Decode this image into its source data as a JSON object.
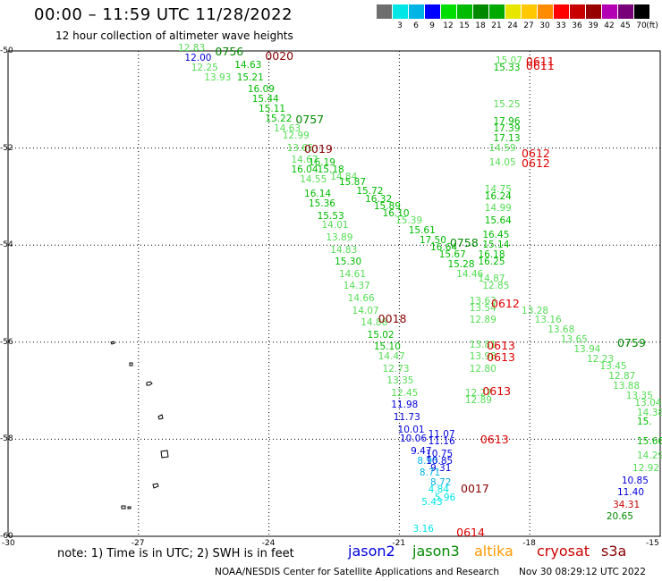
{
  "header": {
    "title": "00:00 – 11:59 UTC 11/28/2022",
    "subtitle": "12 hour collection of altimeter wave heights"
  },
  "legend": {
    "unit": "(ft)",
    "items": [
      {
        "label": "",
        "color": "#6e6e6e"
      },
      {
        "label": "3",
        "color": "#00e5e5"
      },
      {
        "label": "6",
        "color": "#00b4e6"
      },
      {
        "label": "9",
        "color": "#0000ff"
      },
      {
        "label": "12",
        "color": "#00dd00"
      },
      {
        "label": "15",
        "color": "#00bb00"
      },
      {
        "label": "18",
        "color": "#008800"
      },
      {
        "label": "21",
        "color": "#00aa00"
      },
      {
        "label": "24",
        "color": "#e6e600"
      },
      {
        "label": "27",
        "color": "#ffc800"
      },
      {
        "label": "30",
        "color": "#ff8c00"
      },
      {
        "label": "33",
        "color": "#ff0000"
      },
      {
        "label": "36",
        "color": "#c80000"
      },
      {
        "label": "39",
        "color": "#960000"
      },
      {
        "label": "42",
        "color": "#b400b4"
      },
      {
        "label": "45",
        "color": "#780078"
      },
      {
        "label": "70",
        "color": "#000000"
      }
    ]
  },
  "axes": {
    "lat_labels": [
      "-50",
      "-52",
      "-54",
      "-56",
      "-58",
      "-60"
    ],
    "lon_labels": [
      "-30",
      "-27",
      "-24",
      "-21",
      "-18",
      "-15"
    ]
  },
  "satellites": [
    {
      "name": "jason2",
      "color": "#0000dd"
    },
    {
      "name": "jason3",
      "color": "#008800"
    },
    {
      "name": "altika",
      "color": "#ff9900"
    },
    {
      "name": "cryosat",
      "color": "#cc0000"
    },
    {
      "name": "s3a",
      "color": "#880000"
    }
  ],
  "footer": {
    "note": "note: 1) Time is in UTC; 2) SWH is in feet",
    "credit": "NOAA/NESDIS Center for Satellite Applications and Research",
    "stamp": "Nov 30 08:29:12 UTC 2022"
  },
  "track_labels": [
    {
      "t": "0756",
      "c": "#008800",
      "lat": -50.0,
      "lon": -24.95
    },
    {
      "t": "0020",
      "c": "#880000",
      "lat": -50.1,
      "lon": -23.8
    },
    {
      "t": "0757",
      "c": "#008800",
      "lat": -51.4,
      "lon": -23.1
    },
    {
      "t": "0019",
      "c": "#880000",
      "lat": -52.0,
      "lon": -22.9
    },
    {
      "t": "0758",
      "c": "#008800",
      "lat": -53.95,
      "lon": -19.55
    },
    {
      "t": "0018",
      "c": "#880000",
      "lat": -55.5,
      "lon": -21.2
    },
    {
      "t": "0759",
      "c": "#008800",
      "lat": -56.0,
      "lon": -15.7
    },
    {
      "t": "0611",
      "c": "#dd0000",
      "lat": -50.2,
      "lon": -17.8
    },
    {
      "t": "0611",
      "c": "#dd0000",
      "lat": -50.3,
      "lon": -17.8
    },
    {
      "t": "0612",
      "c": "#dd0000",
      "lat": -52.1,
      "lon": -17.9
    },
    {
      "t": "0612",
      "c": "#dd0000",
      "lat": -52.3,
      "lon": -17.9
    },
    {
      "t": "0612",
      "c": "#dd0000",
      "lat": -55.2,
      "lon": -18.6
    },
    {
      "t": "0613",
      "c": "#dd0000",
      "lat": -56.05,
      "lon": -18.7
    },
    {
      "t": "0613",
      "c": "#dd0000",
      "lat": -56.3,
      "lon": -18.7
    },
    {
      "t": "0613",
      "c": "#dd0000",
      "lat": -57.0,
      "lon": -18.8
    },
    {
      "t": "0613",
      "c": "#dd0000",
      "lat": -58.0,
      "lon": -18.85
    },
    {
      "t": "0017",
      "c": "#880000",
      "lat": -59.0,
      "lon": -19.3
    },
    {
      "t": "0614",
      "c": "#dd0000",
      "lat": -59.9,
      "lon": -19.4
    }
  ],
  "measurements": [
    {
      "v": "12.83",
      "c": "#55dd55",
      "lat": -49.95,
      "lon": -25.8
    },
    {
      "v": "12.00",
      "c": "#0000dd",
      "lat": -50.15,
      "lon": -25.65
    },
    {
      "v": "12.25",
      "c": "#55dd55",
      "lat": -50.35,
      "lon": -25.5
    },
    {
      "v": "14.63",
      "c": "#00bb00",
      "lat": -50.3,
      "lon": -24.5
    },
    {
      "v": "13.93",
      "c": "#55dd55",
      "lat": -50.55,
      "lon": -25.2
    },
    {
      "v": "15.21",
      "c": "#00bb00",
      "lat": -50.55,
      "lon": -24.45
    },
    {
      "v": "16.09",
      "c": "#00bb00",
      "lat": -50.8,
      "lon": -24.2
    },
    {
      "v": "15.44",
      "c": "#00bb00",
      "lat": -51.0,
      "lon": -24.1
    },
    {
      "v": "15.11",
      "c": "#00bb00",
      "lat": -51.2,
      "lon": -23.95
    },
    {
      "v": "15.22",
      "c": "#00bb00",
      "lat": -51.4,
      "lon": -23.8
    },
    {
      "v": "14.63",
      "c": "#55dd55",
      "lat": -51.6,
      "lon": -23.6
    },
    {
      "v": "12.99",
      "c": "#55dd55",
      "lat": -51.75,
      "lon": -23.4
    },
    {
      "v": "13.65",
      "c": "#55dd55",
      "lat": -52.0,
      "lon": -23.3
    },
    {
      "v": "14.67",
      "c": "#55dd55",
      "lat": -52.25,
      "lon": -23.2
    },
    {
      "v": "16.19",
      "c": "#00bb00",
      "lat": -52.3,
      "lon": -22.8
    },
    {
      "v": "16.04",
      "c": "#00bb00",
      "lat": -52.45,
      "lon": -23.2
    },
    {
      "v": "15.18",
      "c": "#00bb00",
      "lat": -52.45,
      "lon": -22.6
    },
    {
      "v": "14.84",
      "c": "#55dd55",
      "lat": -52.6,
      "lon": -22.3
    },
    {
      "v": "14.55",
      "c": "#55dd55",
      "lat": -52.65,
      "lon": -23.0
    },
    {
      "v": "15.87",
      "c": "#00bb00",
      "lat": -52.7,
      "lon": -22.1
    },
    {
      "v": "16.14",
      "c": "#00bb00",
      "lat": -52.95,
      "lon": -22.9
    },
    {
      "v": "15.72",
      "c": "#00bb00",
      "lat": -52.9,
      "lon": -21.7
    },
    {
      "v": "15.36",
      "c": "#00bb00",
      "lat": -53.15,
      "lon": -22.8
    },
    {
      "v": "16.32",
      "c": "#00bb00",
      "lat": -53.05,
      "lon": -21.5
    },
    {
      "v": "15.89",
      "c": "#00bb00",
      "lat": -53.2,
      "lon": -21.3
    },
    {
      "v": "15.53",
      "c": "#00bb00",
      "lat": -53.4,
      "lon": -22.6
    },
    {
      "v": "16.10",
      "c": "#00bb00",
      "lat": -53.35,
      "lon": -21.1
    },
    {
      "v": "14.01",
      "c": "#55dd55",
      "lat": -53.6,
      "lon": -22.5
    },
    {
      "v": "13.89",
      "c": "#55dd55",
      "lat": -53.85,
      "lon": -22.4
    },
    {
      "v": "15.39",
      "c": "#55dd55",
      "lat": -53.5,
      "lon": -20.8
    },
    {
      "v": "15.61",
      "c": "#00bb00",
      "lat": -53.7,
      "lon": -20.5
    },
    {
      "v": "17.50",
      "c": "#00bb00",
      "lat": -53.9,
      "lon": -20.25
    },
    {
      "v": "16.64",
      "c": "#00bb00",
      "lat": -54.05,
      "lon": -20.0
    },
    {
      "v": "14.83",
      "c": "#55dd55",
      "lat": -54.1,
      "lon": -22.3
    },
    {
      "v": "15.30",
      "c": "#00bb00",
      "lat": -54.35,
      "lon": -22.2
    },
    {
      "v": "15.67",
      "c": "#00bb00",
      "lat": -54.2,
      "lon": -19.8
    },
    {
      "v": "15.28",
      "c": "#00bb00",
      "lat": -54.4,
      "lon": -19.6
    },
    {
      "v": "14.61",
      "c": "#55dd55",
      "lat": -54.6,
      "lon": -22.1
    },
    {
      "v": "14.37",
      "c": "#55dd55",
      "lat": -54.85,
      "lon": -22.0
    },
    {
      "v": "14.46",
      "c": "#55dd55",
      "lat": -54.6,
      "lon": -19.4
    },
    {
      "v": "14.66",
      "c": "#55dd55",
      "lat": -55.1,
      "lon": -21.9
    },
    {
      "v": "14.07",
      "c": "#55dd55",
      "lat": -55.35,
      "lon": -21.8
    },
    {
      "v": "14.88",
      "c": "#55dd55",
      "lat": -55.6,
      "lon": -21.6
    },
    {
      "v": "15.02",
      "c": "#00bb00",
      "lat": -55.85,
      "lon": -21.45
    },
    {
      "v": "15.10",
      "c": "#00bb00",
      "lat": -56.1,
      "lon": -21.3
    },
    {
      "v": "14.47",
      "c": "#55dd55",
      "lat": -56.3,
      "lon": -21.2
    },
    {
      "v": "12.73",
      "c": "#55dd55",
      "lat": -56.55,
      "lon": -21.1
    },
    {
      "v": "13.35",
      "c": "#55dd55",
      "lat": -56.8,
      "lon": -21.0
    },
    {
      "v": "12.45",
      "c": "#55dd55",
      "lat": -57.05,
      "lon": -20.9
    },
    {
      "v": "11.98",
      "c": "#0000dd",
      "lat": -57.3,
      "lon": -20.9
    },
    {
      "v": "11.73",
      "c": "#0000dd",
      "lat": -57.55,
      "lon": -20.85
    },
    {
      "v": "10.01",
      "c": "#0000dd",
      "lat": -57.8,
      "lon": -20.75
    },
    {
      "v": "10.06",
      "c": "#0000dd",
      "lat": -58.0,
      "lon": -20.7
    },
    {
      "v": "11.07",
      "c": "#0000dd",
      "lat": -57.9,
      "lon": -20.05
    },
    {
      "v": "11.16",
      "c": "#0000dd",
      "lat": -58.05,
      "lon": -20.05
    },
    {
      "v": "9.47",
      "c": "#0000dd",
      "lat": -58.25,
      "lon": -20.45
    },
    {
      "v": "10.75",
      "c": "#0000dd",
      "lat": -58.3,
      "lon": -20.1
    },
    {
      "v": "8.95",
      "c": "#00b4e6",
      "lat": -58.45,
      "lon": -20.3
    },
    {
      "v": "10.85",
      "c": "#0000dd",
      "lat": -58.45,
      "lon": -20.1
    },
    {
      "v": "9.31",
      "c": "#0000dd",
      "lat": -58.6,
      "lon": -20.0
    },
    {
      "v": "8.71",
      "c": "#00b4e6",
      "lat": -58.7,
      "lon": -20.25
    },
    {
      "v": "8.72",
      "c": "#00b4e6",
      "lat": -58.9,
      "lon": -20.0
    },
    {
      "v": "4.84",
      "c": "#00e5e5",
      "lat": -59.05,
      "lon": -20.05
    },
    {
      "v": "5.96",
      "c": "#00e5e5",
      "lat": -59.2,
      "lon": -19.9
    },
    {
      "v": "5.43",
      "c": "#00e5e5",
      "lat": -59.3,
      "lon": -20.2
    },
    {
      "v": "3.16",
      "c": "#00e5e5",
      "lat": -59.85,
      "lon": -20.4
    },
    {
      "v": "15.07",
      "c": "#55dd55",
      "lat": -50.2,
      "lon": -18.5
    },
    {
      "v": "15.33",
      "c": "#00bb00",
      "lat": -50.35,
      "lon": -18.55
    },
    {
      "v": "15.25",
      "c": "#55dd55",
      "lat": -51.1,
      "lon": -18.55
    },
    {
      "v": "17.96",
      "c": "#00bb00",
      "lat": -51.45,
      "lon": -18.55
    },
    {
      "v": "17.39",
      "c": "#00bb00",
      "lat": -51.6,
      "lon": -18.55
    },
    {
      "v": "17.13",
      "c": "#00bb00",
      "lat": -51.8,
      "lon": -18.55
    },
    {
      "v": "14.59",
      "c": "#55dd55",
      "lat": -52.0,
      "lon": -18.65
    },
    {
      "v": "14.05",
      "c": "#55dd55",
      "lat": -52.3,
      "lon": -18.65
    },
    {
      "v": "14.75",
      "c": "#55dd55",
      "lat": -52.85,
      "lon": -18.75
    },
    {
      "v": "16.24",
      "c": "#00bb00",
      "lat": -53.0,
      "lon": -18.75
    },
    {
      "v": "14.99",
      "c": "#55dd55",
      "lat": -53.25,
      "lon": -18.75
    },
    {
      "v": "15.64",
      "c": "#00bb00",
      "lat": -53.5,
      "lon": -18.75
    },
    {
      "v": "16.45",
      "c": "#00bb00",
      "lat": -53.8,
      "lon": -18.8
    },
    {
      "v": "15.14",
      "c": "#00bb00",
      "lat": -54.0,
      "lon": -18.8
    },
    {
      "v": "16.18",
      "c": "#00bb00",
      "lat": -54.2,
      "lon": -18.9
    },
    {
      "v": "16.25",
      "c": "#00bb00",
      "lat": -54.35,
      "lon": -18.9
    },
    {
      "v": "14.87",
      "c": "#55dd55",
      "lat": -54.7,
      "lon": -18.9
    },
    {
      "v": "12.85",
      "c": "#55dd55",
      "lat": -54.85,
      "lon": -18.8
    },
    {
      "v": "13.63",
      "c": "#55dd55",
      "lat": -55.15,
      "lon": -19.1
    },
    {
      "v": "13.54",
      "c": "#55dd55",
      "lat": -55.3,
      "lon": -19.1
    },
    {
      "v": "12.89",
      "c": "#55dd55",
      "lat": -55.55,
      "lon": -19.1
    },
    {
      "v": "13.28",
      "c": "#55dd55",
      "lat": -55.35,
      "lon": -17.9
    },
    {
      "v": "13.16",
      "c": "#55dd55",
      "lat": -55.55,
      "lon": -17.6
    },
    {
      "v": "13.68",
      "c": "#55dd55",
      "lat": -55.75,
      "lon": -17.3
    },
    {
      "v": "13.65",
      "c": "#55dd55",
      "lat": -55.95,
      "lon": -17.0
    },
    {
      "v": "13.94",
      "c": "#55dd55",
      "lat": -56.15,
      "lon": -16.7
    },
    {
      "v": "12.23",
      "c": "#55dd55",
      "lat": -56.35,
      "lon": -16.4
    },
    {
      "v": "13.45",
      "c": "#55dd55",
      "lat": -56.5,
      "lon": -16.1
    },
    {
      "v": "12.87",
      "c": "#55dd55",
      "lat": -56.7,
      "lon": -15.9
    },
    {
      "v": "13.88",
      "c": "#55dd55",
      "lat": -56.9,
      "lon": -15.8
    },
    {
      "v": "13.35",
      "c": "#55dd55",
      "lat": -57.1,
      "lon": -15.5
    },
    {
      "v": "13.04",
      "c": "#55dd55",
      "lat": -57.25,
      "lon": -15.3
    },
    {
      "v": "14.38",
      "c": "#55dd55",
      "lat": -57.45,
      "lon": -15.1
    },
    {
      "v": "15.",
      "c": "#00bb00",
      "lat": -57.65,
      "lon": -15.05
    },
    {
      "v": "15.66",
      "c": "#00bb00",
      "lat": -58.05,
      "lon": -15.2
    },
    {
      "v": "14.29",
      "c": "#55dd55",
      "lat": -58.35,
      "lon": -15.25
    },
    {
      "v": "12.92",
      "c": "#55dd55",
      "lat": -58.6,
      "lon": -15.35
    },
    {
      "v": "10.85",
      "c": "#0000dd",
      "lat": -58.85,
      "lon": -15.6
    },
    {
      "v": "11.40",
      "c": "#0000dd",
      "lat": -59.1,
      "lon": -15.7
    },
    {
      "v": "34.31",
      "c": "#c80000",
      "lat": -59.35,
      "lon": -15.8
    },
    {
      "v": "20.65",
      "c": "#008800",
      "lat": -59.6,
      "lon": -15.95
    },
    {
      "v": "13.81",
      "c": "#55dd55",
      "lat": -56.05,
      "lon": -19.1
    },
    {
      "v": "13.98",
      "c": "#55dd55",
      "lat": -56.3,
      "lon": -19.1
    },
    {
      "v": "12.80",
      "c": "#55dd55",
      "lat": -56.55,
      "lon": -19.1
    },
    {
      "v": "12.27",
      "c": "#55dd55",
      "lat": -57.05,
      "lon": -19.2
    },
    {
      "v": "12.89",
      "c": "#55dd55",
      "lat": -57.2,
      "lon": -19.2
    }
  ]
}
